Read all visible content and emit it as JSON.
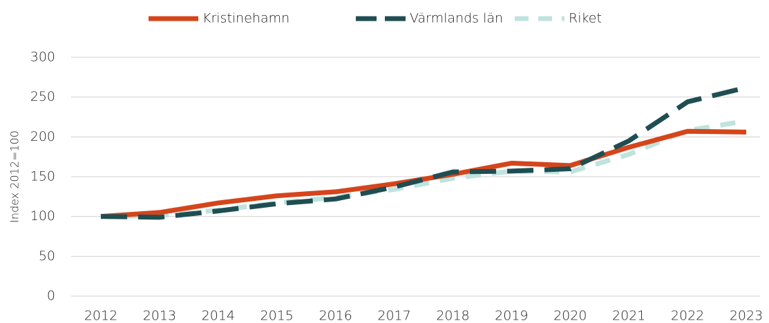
{
  "chart_data": {
    "type": "line",
    "y_axis_label": "Index 2012=100",
    "categories": [
      "2012",
      "2013",
      "2014",
      "2015",
      "2016",
      "2017",
      "2018",
      "2019",
      "2020",
      "2021",
      "2022",
      "2023"
    ],
    "series": [
      {
        "name": "Kristinehamn",
        "color": "#d5451b",
        "dash": "solid",
        "values": [
          100,
          105,
          117,
          126,
          131,
          141,
          153,
          167,
          164,
          187,
          207,
          206
        ]
      },
      {
        "name": "Värmlands län",
        "color": "#1f4e52",
        "dash": "long",
        "values": [
          100,
          99,
          107,
          116,
          122,
          137,
          156,
          157,
          160,
          195,
          244,
          262
        ]
      },
      {
        "name": "Riket",
        "color": "#bfe3df",
        "dash": "short",
        "values": [
          100,
          101,
          108,
          117,
          124,
          134,
          148,
          157,
          156,
          178,
          208,
          220
        ]
      }
    ],
    "ylim": [
      0,
      300
    ],
    "yticks": [
      0,
      50,
      100,
      150,
      200,
      250,
      300
    ],
    "grid": true,
    "legend": "top"
  }
}
